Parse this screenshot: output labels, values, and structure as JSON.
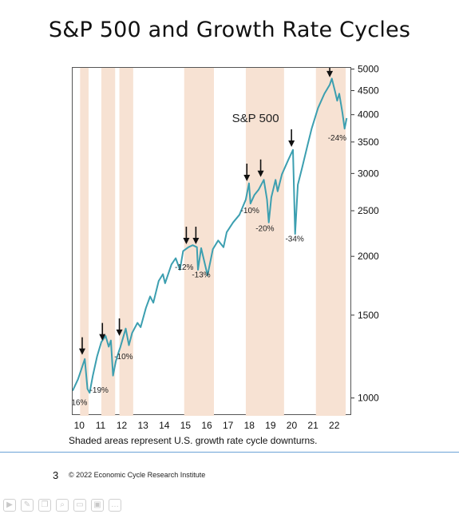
{
  "slide": {
    "title": "S&P 500 and Growth Rate Cycles",
    "caption": "Shaded areas represent U.S. growth rate cycle downturns.",
    "page_number": "3",
    "copyright": "© 2022 Economic Cycle Research Institute"
  },
  "toolbar": {
    "icons": [
      "play-icon",
      "edit-icon",
      "copy-icon",
      "zoom-icon",
      "fit-icon",
      "video-icon",
      "more-icon"
    ]
  },
  "colors": {
    "line": "#3c9fb0",
    "shade": "#f7e2d3",
    "text": "#222222"
  },
  "chart_data": {
    "type": "line",
    "series_label": "S&P 500",
    "y_scale": "log",
    "ylim": [
      920,
      5050
    ],
    "xlim": [
      2009.75,
      2022.9
    ],
    "yticks": [
      1000,
      1500,
      2000,
      2500,
      3000,
      3500,
      4000,
      4500,
      5000
    ],
    "xticks": [
      {
        "label": "10",
        "year": 2010.1
      },
      {
        "label": "11",
        "year": 2011.1
      },
      {
        "label": "12",
        "year": 2012.1
      },
      {
        "label": "13",
        "year": 2013.1
      },
      {
        "label": "14",
        "year": 2014.1
      },
      {
        "label": "15",
        "year": 2015.1
      },
      {
        "label": "16",
        "year": 2016.1
      },
      {
        "label": "17",
        "year": 2017.1
      },
      {
        "label": "18",
        "year": 2018.1
      },
      {
        "label": "19",
        "year": 2019.1
      },
      {
        "label": "20",
        "year": 2020.1
      },
      {
        "label": "21",
        "year": 2021.1
      },
      {
        "label": "22",
        "year": 2022.1
      }
    ],
    "shaded_periods": [
      [
        2010.1,
        2010.5
      ],
      [
        2011.1,
        2011.75
      ],
      [
        2011.95,
        2012.6
      ],
      [
        2015.0,
        2016.4
      ],
      [
        2017.9,
        2019.7
      ],
      [
        2021.2,
        2022.6
      ]
    ],
    "series": [
      {
        "points": [
          [
            2009.75,
            1040
          ],
          [
            2010.0,
            1100
          ],
          [
            2010.2,
            1170
          ],
          [
            2010.32,
            1215
          ],
          [
            2010.45,
            1050
          ],
          [
            2010.55,
            1030
          ],
          [
            2010.7,
            1120
          ],
          [
            2010.9,
            1230
          ],
          [
            2011.1,
            1320
          ],
          [
            2011.3,
            1360
          ],
          [
            2011.45,
            1290
          ],
          [
            2011.55,
            1330
          ],
          [
            2011.65,
            1120
          ],
          [
            2011.78,
            1200
          ],
          [
            2011.9,
            1250
          ],
          [
            2012.0,
            1290
          ],
          [
            2012.25,
            1410
          ],
          [
            2012.4,
            1300
          ],
          [
            2012.55,
            1380
          ],
          [
            2012.8,
            1450
          ],
          [
            2012.95,
            1420
          ],
          [
            2013.2,
            1560
          ],
          [
            2013.4,
            1650
          ],
          [
            2013.55,
            1600
          ],
          [
            2013.8,
            1780
          ],
          [
            2014.0,
            1840
          ],
          [
            2014.1,
            1760
          ],
          [
            2014.4,
            1930
          ],
          [
            2014.6,
            1990
          ],
          [
            2014.8,
            1880
          ],
          [
            2014.95,
            2060
          ],
          [
            2015.2,
            2100
          ],
          [
            2015.4,
            2120
          ],
          [
            2015.6,
            2100
          ],
          [
            2015.65,
            1880
          ],
          [
            2015.8,
            2090
          ],
          [
            2016.05,
            1870
          ],
          [
            2016.1,
            1830
          ],
          [
            2016.35,
            2080
          ],
          [
            2016.6,
            2170
          ],
          [
            2016.85,
            2100
          ],
          [
            2017.0,
            2260
          ],
          [
            2017.3,
            2370
          ],
          [
            2017.6,
            2460
          ],
          [
            2017.9,
            2650
          ],
          [
            2018.05,
            2870
          ],
          [
            2018.12,
            2600
          ],
          [
            2018.3,
            2710
          ],
          [
            2018.5,
            2780
          ],
          [
            2018.75,
            2920
          ],
          [
            2018.9,
            2650
          ],
          [
            2018.98,
            2370
          ],
          [
            2019.1,
            2680
          ],
          [
            2019.3,
            2920
          ],
          [
            2019.4,
            2760
          ],
          [
            2019.6,
            3000
          ],
          [
            2019.9,
            3220
          ],
          [
            2020.12,
            3380
          ],
          [
            2020.22,
            2240
          ],
          [
            2020.35,
            2850
          ],
          [
            2020.55,
            3100
          ],
          [
            2020.8,
            3450
          ],
          [
            2021.0,
            3750
          ],
          [
            2021.3,
            4150
          ],
          [
            2021.6,
            4450
          ],
          [
            2021.85,
            4650
          ],
          [
            2021.95,
            4790
          ],
          [
            2022.1,
            4500
          ],
          [
            2022.2,
            4300
          ],
          [
            2022.3,
            4450
          ],
          [
            2022.45,
            4050
          ],
          [
            2022.55,
            3750
          ],
          [
            2022.65,
            3950
          ]
        ]
      }
    ],
    "annotations": [
      {
        "text": "-16%",
        "x": 2010.0,
        "y": 970
      },
      {
        "text": "-19%",
        "x": 2011.0,
        "y": 1030
      },
      {
        "text": "-10%",
        "x": 2012.15,
        "y": 1215
      },
      {
        "text": "-12%",
        "x": 2015.0,
        "y": 1880
      },
      {
        "text": "-13%",
        "x": 2015.8,
        "y": 1810
      },
      {
        "text": "-10%",
        "x": 2018.1,
        "y": 2480
      },
      {
        "text": "-20%",
        "x": 2018.8,
        "y": 2270
      },
      {
        "text": "-34%",
        "x": 2020.2,
        "y": 2160
      },
      {
        "text": "-24%",
        "x": 2022.2,
        "y": 3540
      }
    ],
    "arrows": [
      {
        "x": 2010.2,
        "y": 1240
      },
      {
        "x": 2011.15,
        "y": 1330
      },
      {
        "x": 2011.95,
        "y": 1360
      },
      {
        "x": 2015.1,
        "y": 2130
      },
      {
        "x": 2015.55,
        "y": 2130
      },
      {
        "x": 2017.95,
        "y": 2900
      },
      {
        "x": 2018.6,
        "y": 2960
      },
      {
        "x": 2020.05,
        "y": 3430
      },
      {
        "x": 2021.85,
        "y": 4820
      }
    ]
  }
}
